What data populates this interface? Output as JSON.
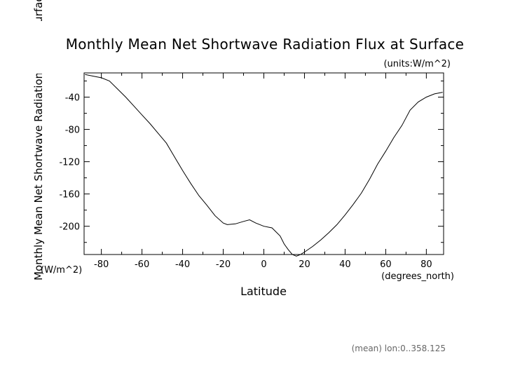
{
  "chart_data": {
    "type": "line",
    "title": "Monthly Mean Net Shortwave Radiation Flux at Surface",
    "units_label": "(units:W/m^2)",
    "xlabel": "Latitude",
    "x_unit_label": "(degrees_north)",
    "ylabel": "Monthly Mean Net Shortwave Radiation Flux at Surface",
    "y_unit_label": "(W/m^2)",
    "footnote": "(mean) lon:0..358.125",
    "xlim": [
      -88.5,
      88.5
    ],
    "ylim": [
      -235,
      -10
    ],
    "xticks": [
      -80,
      -60,
      -40,
      -20,
      0,
      20,
      40,
      60,
      80
    ],
    "yticks": [
      -40,
      -80,
      -120,
      -160,
      -200
    ],
    "grid": false,
    "series": [
      {
        "x": [
          -88,
          -84,
          -80,
          -76,
          -72,
          -68,
          -64,
          -60,
          -56,
          -52,
          -48,
          -44,
          -40,
          -36,
          -32,
          -28,
          -24,
          -20,
          -18,
          -14,
          -10,
          -7,
          -4,
          0,
          4,
          8,
          10,
          12,
          14,
          16,
          18,
          20,
          24,
          28,
          32,
          36,
          40,
          44,
          48,
          52,
          56,
          60,
          64,
          68,
          72,
          76,
          80,
          84,
          88
        ],
        "y": [
          -12,
          -14,
          -16,
          -20,
          -30,
          -40,
          -51,
          -62,
          -73,
          -85,
          -97,
          -114,
          -131,
          -147,
          -162,
          -174,
          -187,
          -196,
          -198,
          -197,
          -194,
          -192,
          -196,
          -200,
          -202,
          -212,
          -222,
          -229,
          -235,
          -237,
          -235,
          -232,
          -225,
          -217,
          -208,
          -198,
          -186,
          -173,
          -159,
          -142,
          -123,
          -107,
          -90,
          -75,
          -56,
          -46,
          -40,
          -36,
          -34
        ]
      }
    ]
  }
}
